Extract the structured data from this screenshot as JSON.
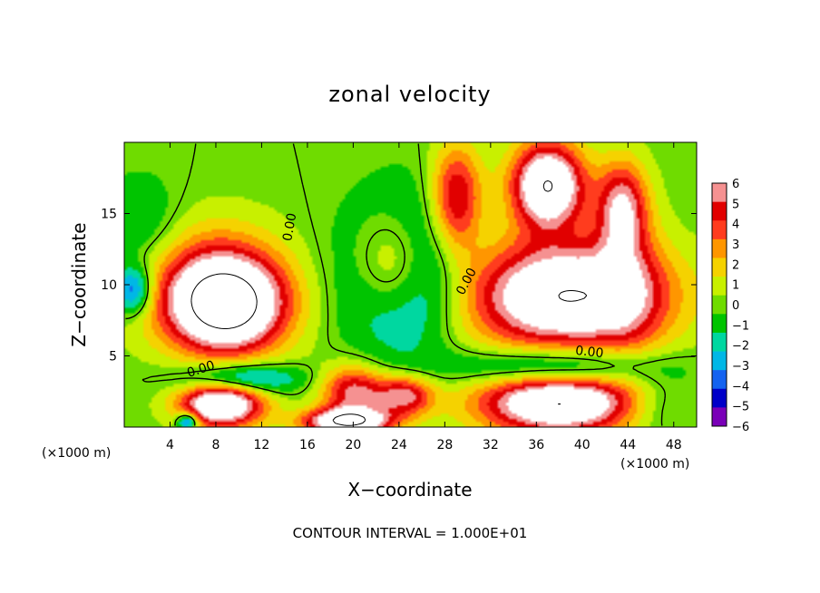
{
  "chart_data": {
    "type": "heatmap",
    "title": "zonal velocity",
    "xlabel": "X−coordinate",
    "ylabel": "Z−coordinate",
    "x_unit_left": "(×1000 m)",
    "x_unit_right": "(×1000 m)",
    "xlim": [
      0,
      50
    ],
    "ylim": [
      0,
      20
    ],
    "xticks": [
      4,
      8,
      12,
      16,
      20,
      24,
      28,
      32,
      36,
      40,
      44,
      48
    ],
    "xtick_labels": [
      "4",
      "8",
      "12",
      "16",
      "20",
      "24",
      "28",
      "32",
      "36",
      "40",
      "44",
      "48"
    ],
    "yticks": [
      5,
      10,
      15
    ],
    "ytick_labels": [
      "5",
      "10",
      "15"
    ],
    "colorbar": {
      "min": -6,
      "max": 6,
      "ticks": [
        6,
        5,
        4,
        3,
        2,
        1,
        0,
        -1,
        -2,
        -3,
        -4,
        -5,
        -6
      ],
      "tick_labels": [
        "6",
        "5",
        "4",
        "3",
        "2",
        "1",
        "0",
        "−1",
        "−2",
        "−3",
        "−4",
        "−5",
        "−6"
      ]
    },
    "contour_labels": [
      {
        "text": "0.00",
        "x": 14.8,
        "z": 14.0,
        "rotate": -80
      },
      {
        "text": "0.00",
        "x": 6.8,
        "z": 3.8,
        "rotate": -18
      },
      {
        "text": "0.00",
        "x": 30.2,
        "z": 10.1,
        "rotate": -62
      },
      {
        "text": "0.00",
        "x": 40.6,
        "z": 5.0,
        "rotate": 6
      }
    ],
    "features": [
      {
        "x": 9.0,
        "z": 8.5,
        "value": 10,
        "rx": 5.0,
        "rz": 3.3
      },
      {
        "x": 7.5,
        "z": 10.2,
        "value": 4,
        "rx": 6.5,
        "rz": 4.2
      },
      {
        "x": 24.0,
        "z": 11.0,
        "value": -10,
        "rx": 4.6,
        "rz": 4.8
      },
      {
        "x": 23.5,
        "z": 11.4,
        "value": 10,
        "rx": 3.6,
        "rz": 3.9
      },
      {
        "x": 38.5,
        "z": 9.2,
        "value": 10,
        "rx": 8.5,
        "rz": 3.8
      },
      {
        "x": 37.0,
        "z": 17.0,
        "value": 10,
        "rx": 3.2,
        "rz": 3.0
      },
      {
        "x": 29.0,
        "z": 16.0,
        "value": 6,
        "rx": 2.2,
        "rz": 3.8
      },
      {
        "x": 43.5,
        "z": 15.5,
        "value": 6,
        "rx": 2.2,
        "rz": 3.2
      },
      {
        "x": 38.0,
        "z": 1.7,
        "value": 10,
        "rx": 7.0,
        "rz": 2.2
      },
      {
        "x": 38.0,
        "z": 4.2,
        "value": -5,
        "rx": 8.5,
        "rz": 1.4
      },
      {
        "x": 8.5,
        "z": 1.6,
        "value": 10,
        "rx": 3.6,
        "rz": 1.6
      },
      {
        "x": 10.0,
        "z": 3.4,
        "value": -5,
        "rx": 5.0,
        "rz": 1.1
      },
      {
        "x": 20.0,
        "z": 2.5,
        "value": 6,
        "rx": 2.8,
        "rz": 1.8
      },
      {
        "x": 24.5,
        "z": 2.2,
        "value": 6,
        "rx": 2.5,
        "rz": 1.4
      },
      {
        "x": 19.5,
        "z": 0.4,
        "value": 10,
        "rx": 3.8,
        "rz": 0.9
      },
      {
        "x": 0.8,
        "z": 9.6,
        "value": -5,
        "rx": 1.7,
        "rz": 1.7
      },
      {
        "x": 1.5,
        "z": 14.0,
        "value": -2,
        "rx": 3.5,
        "rz": 3.5
      },
      {
        "x": 46.5,
        "z": 1.5,
        "value": -2,
        "rx": 3.5,
        "rz": 2.0
      },
      {
        "x": 5.5,
        "z": 0.4,
        "value": -6,
        "rx": 0.9,
        "rz": 0.6
      },
      {
        "x": 44.0,
        "z": 10.0,
        "value": 2,
        "rx": 3.0,
        "rz": 6.0
      }
    ]
  },
  "footer": {
    "contour_interval": "CONTOUR INTERVAL = 1.000E+01"
  },
  "colors": {
    "scale": [
      "#7a00b8",
      "#0000c8",
      "#1463f0",
      "#00b7e6",
      "#00d7a0",
      "#00c400",
      "#6fdc00",
      "#c8f000",
      "#f5d200",
      "#ff9600",
      "#ff3c1e",
      "#e10000",
      "#f59191"
    ],
    "saturated": "#ffffff",
    "contour": "#000000"
  }
}
